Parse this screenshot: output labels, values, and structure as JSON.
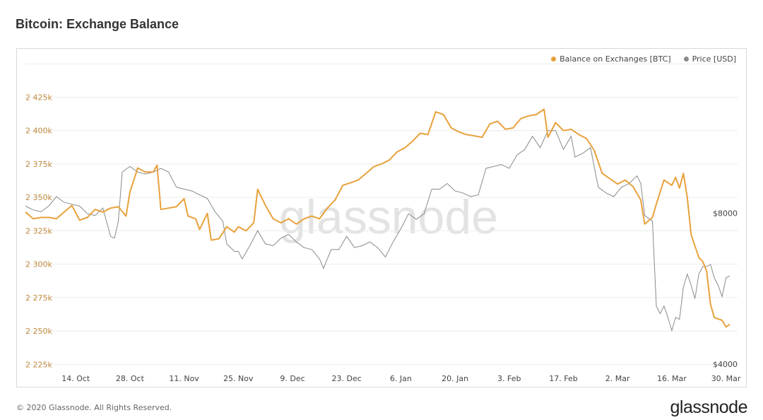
{
  "title": "Bitcoin: Exchange Balance",
  "footer": "© 2020 Glassnode. All Rights Reserved.",
  "logo": "glassnode",
  "watermark": "glassnode",
  "colors": {
    "balance": "#e8a13c",
    "price": "#8a8a8a",
    "grid": "#ececec",
    "left_axis_text": "#c08a3e",
    "text": "#444444"
  },
  "chart_data": {
    "type": "line",
    "title": "Bitcoin: Exchange Balance",
    "legend": {
      "placement": "top-right",
      "entries": [
        "Balance on Exchanges [BTC]",
        "Price [USD]"
      ]
    },
    "grid": true,
    "x_labels": [
      "14. Oct",
      "28. Oct",
      "11. Nov",
      "25. Nov",
      "9. Dec",
      "23. Dec",
      "6. Jan",
      "20. Jan",
      "3. Feb",
      "17. Feb",
      "2. Mar",
      "16. Mar",
      "30. Mar"
    ],
    "x_range": [
      "2019-10-01",
      "2020-04-02"
    ],
    "y_left": {
      "ticks": [
        2225000,
        2250000,
        2275000,
        2300000,
        2325000,
        2350000,
        2375000,
        2400000,
        2425000
      ],
      "tick_labels": [
        "2 225k",
        "2 250k",
        "2 275k",
        "2 300k",
        "2 325k",
        "2 350k",
        "2 375k",
        "2 400k",
        "2 425k"
      ],
      "range": [
        2222000,
        2448000
      ]
    },
    "y_right": {
      "tick_labels": [
        "$4000",
        "$8000"
      ],
      "ticks": [
        4000,
        8000
      ],
      "range": [
        4000,
        12000
      ]
    },
    "series": [
      {
        "name": "Balance on Exchanges [BTC]",
        "axis": "left",
        "points": [
          [
            "2019-10-01",
            2339000
          ],
          [
            "2019-10-03",
            2334000
          ],
          [
            "2019-10-05",
            2335000
          ],
          [
            "2019-10-07",
            2335000
          ],
          [
            "2019-10-09",
            2334000
          ],
          [
            "2019-10-11",
            2339000
          ],
          [
            "2019-10-13",
            2344000
          ],
          [
            "2019-10-15",
            2333000
          ],
          [
            "2019-10-17",
            2335000
          ],
          [
            "2019-10-19",
            2341000
          ],
          [
            "2019-10-21",
            2339000
          ],
          [
            "2019-10-23",
            2342000
          ],
          [
            "2019-10-25",
            2343000
          ],
          [
            "2019-10-27",
            2336000
          ],
          [
            "2019-10-28",
            2354000
          ],
          [
            "2019-10-30",
            2372000
          ],
          [
            "2019-11-01",
            2369000
          ],
          [
            "2019-11-03",
            2369000
          ],
          [
            "2019-11-04",
            2374000
          ],
          [
            "2019-11-05",
            2341000
          ],
          [
            "2019-11-07",
            2342000
          ],
          [
            "2019-11-09",
            2343000
          ],
          [
            "2019-11-11",
            2349000
          ],
          [
            "2019-11-12",
            2336000
          ],
          [
            "2019-11-14",
            2334000
          ],
          [
            "2019-11-15",
            2326000
          ],
          [
            "2019-11-17",
            2338000
          ],
          [
            "2019-11-18",
            2318000
          ],
          [
            "2019-11-20",
            2319000
          ],
          [
            "2019-11-22",
            2328000
          ],
          [
            "2019-11-24",
            2324000
          ],
          [
            "2019-11-25",
            2328000
          ],
          [
            "2019-11-27",
            2325000
          ],
          [
            "2019-11-29",
            2331000
          ],
          [
            "2019-11-30",
            2356000
          ],
          [
            "2019-12-02",
            2344000
          ],
          [
            "2019-12-04",
            2334000
          ],
          [
            "2019-12-06",
            2331000
          ],
          [
            "2019-12-08",
            2334000
          ],
          [
            "2019-12-10",
            2330000
          ],
          [
            "2019-12-12",
            2334000
          ],
          [
            "2019-12-14",
            2336000
          ],
          [
            "2019-12-16",
            2334000
          ],
          [
            "2019-12-18",
            2342000
          ],
          [
            "2019-12-20",
            2348000
          ],
          [
            "2019-12-22",
            2359000
          ],
          [
            "2019-12-24",
            2361000
          ],
          [
            "2019-12-26",
            2363000
          ],
          [
            "2019-12-28",
            2368000
          ],
          [
            "2019-12-30",
            2373000
          ],
          [
            "2020-01-01",
            2375000
          ],
          [
            "2020-01-03",
            2378000
          ],
          [
            "2020-01-05",
            2384000
          ],
          [
            "2020-01-07",
            2387000
          ],
          [
            "2020-01-09",
            2392000
          ],
          [
            "2020-01-11",
            2398000
          ],
          [
            "2020-01-13",
            2397000
          ],
          [
            "2020-01-15",
            2414000
          ],
          [
            "2020-01-17",
            2412000
          ],
          [
            "2020-01-19",
            2402000
          ],
          [
            "2020-01-21",
            2399000
          ],
          [
            "2020-01-23",
            2397000
          ],
          [
            "2020-01-25",
            2396000
          ],
          [
            "2020-01-27",
            2395000
          ],
          [
            "2020-01-29",
            2405000
          ],
          [
            "2020-01-31",
            2407000
          ],
          [
            "2020-02-02",
            2401000
          ],
          [
            "2020-02-04",
            2402000
          ],
          [
            "2020-02-06",
            2409000
          ],
          [
            "2020-02-08",
            2411000
          ],
          [
            "2020-02-10",
            2412000
          ],
          [
            "2020-02-12",
            2416000
          ],
          [
            "2020-02-13",
            2395000
          ],
          [
            "2020-02-15",
            2406000
          ],
          [
            "2020-02-17",
            2400000
          ],
          [
            "2020-02-19",
            2401000
          ],
          [
            "2020-02-21",
            2397000
          ],
          [
            "2020-02-23",
            2394000
          ],
          [
            "2020-02-25",
            2385000
          ],
          [
            "2020-02-27",
            2368000
          ],
          [
            "2020-02-29",
            2364000
          ],
          [
            "2020-03-02",
            2360000
          ],
          [
            "2020-03-04",
            2363000
          ],
          [
            "2020-03-06",
            2358000
          ],
          [
            "2020-03-08",
            2348000
          ],
          [
            "2020-03-09",
            2330000
          ],
          [
            "2020-03-11",
            2335000
          ],
          [
            "2020-03-12",
            2345000
          ],
          [
            "2020-03-14",
            2363000
          ],
          [
            "2020-03-16",
            2359000
          ],
          [
            "2020-03-17",
            2365000
          ],
          [
            "2020-03-18",
            2357000
          ],
          [
            "2020-03-19",
            2368000
          ],
          [
            "2020-03-20",
            2350000
          ],
          [
            "2020-03-21",
            2322000
          ],
          [
            "2020-03-23",
            2305000
          ],
          [
            "2020-03-24",
            2302000
          ],
          [
            "2020-03-25",
            2295000
          ],
          [
            "2020-03-26",
            2270000
          ],
          [
            "2020-03-27",
            2260000
          ],
          [
            "2020-03-29",
            2258000
          ],
          [
            "2020-03-30",
            2253000
          ],
          [
            "2020-03-31",
            2255000
          ]
        ]
      },
      {
        "name": "Price [USD]",
        "axis": "right",
        "points": [
          [
            "2019-10-01",
            8300
          ],
          [
            "2019-10-03",
            8200
          ],
          [
            "2019-10-05",
            8150
          ],
          [
            "2019-10-07",
            8300
          ],
          [
            "2019-10-09",
            8550
          ],
          [
            "2019-10-11",
            8400
          ],
          [
            "2019-10-13",
            8350
          ],
          [
            "2019-10-15",
            8300
          ],
          [
            "2019-10-17",
            8100
          ],
          [
            "2019-10-19",
            8050
          ],
          [
            "2019-10-21",
            8250
          ],
          [
            "2019-10-23",
            7500
          ],
          [
            "2019-10-24",
            7450
          ],
          [
            "2019-10-25",
            7900
          ],
          [
            "2019-10-26",
            9200
          ],
          [
            "2019-10-28",
            9350
          ],
          [
            "2019-10-30",
            9200
          ],
          [
            "2019-11-01",
            9150
          ],
          [
            "2019-11-03",
            9200
          ],
          [
            "2019-11-05",
            9300
          ],
          [
            "2019-11-07",
            9200
          ],
          [
            "2019-11-09",
            8800
          ],
          [
            "2019-11-11",
            8750
          ],
          [
            "2019-11-13",
            8700
          ],
          [
            "2019-11-15",
            8600
          ],
          [
            "2019-11-17",
            8500
          ],
          [
            "2019-11-19",
            8150
          ],
          [
            "2019-11-21",
            7900
          ],
          [
            "2019-11-22",
            7300
          ],
          [
            "2019-11-24",
            7100
          ],
          [
            "2019-11-25",
            7100
          ],
          [
            "2019-11-26",
            6900
          ],
          [
            "2019-11-28",
            7250
          ],
          [
            "2019-11-30",
            7650
          ],
          [
            "2019-12-02",
            7300
          ],
          [
            "2019-12-04",
            7250
          ],
          [
            "2019-12-06",
            7450
          ],
          [
            "2019-12-08",
            7550
          ],
          [
            "2019-12-10",
            7350
          ],
          [
            "2019-12-12",
            7200
          ],
          [
            "2019-12-14",
            7150
          ],
          [
            "2019-12-16",
            6900
          ],
          [
            "2019-12-17",
            6650
          ],
          [
            "2019-12-19",
            7150
          ],
          [
            "2019-12-21",
            7150
          ],
          [
            "2019-12-23",
            7500
          ],
          [
            "2019-12-25",
            7200
          ],
          [
            "2019-12-27",
            7250
          ],
          [
            "2019-12-29",
            7350
          ],
          [
            "2019-12-31",
            7200
          ],
          [
            "2020-01-02",
            6950
          ],
          [
            "2020-01-04",
            7350
          ],
          [
            "2020-01-06",
            7700
          ],
          [
            "2020-01-08",
            8100
          ],
          [
            "2020-01-10",
            7950
          ],
          [
            "2020-01-12",
            8100
          ],
          [
            "2020-01-14",
            8750
          ],
          [
            "2020-01-16",
            8750
          ],
          [
            "2020-01-18",
            8900
          ],
          [
            "2020-01-20",
            8700
          ],
          [
            "2020-01-22",
            8650
          ],
          [
            "2020-01-24",
            8550
          ],
          [
            "2020-01-26",
            8600
          ],
          [
            "2020-01-28",
            9300
          ],
          [
            "2020-01-30",
            9350
          ],
          [
            "2020-02-01",
            9400
          ],
          [
            "2020-02-03",
            9300
          ],
          [
            "2020-02-05",
            9650
          ],
          [
            "2020-02-07",
            9800
          ],
          [
            "2020-02-09",
            10150
          ],
          [
            "2020-02-11",
            9850
          ],
          [
            "2020-02-13",
            10300
          ],
          [
            "2020-02-15",
            10300
          ],
          [
            "2020-02-17",
            9800
          ],
          [
            "2020-02-19",
            10150
          ],
          [
            "2020-02-20",
            9600
          ],
          [
            "2020-02-22",
            9700
          ],
          [
            "2020-02-24",
            9850
          ],
          [
            "2020-02-26",
            8800
          ],
          [
            "2020-02-28",
            8650
          ],
          [
            "2020-03-01",
            8550
          ],
          [
            "2020-03-03",
            8800
          ],
          [
            "2020-03-05",
            8900
          ],
          [
            "2020-03-07",
            9100
          ],
          [
            "2020-03-08",
            8900
          ],
          [
            "2020-03-09",
            8050
          ],
          [
            "2020-03-11",
            7900
          ],
          [
            "2020-03-12",
            5650
          ],
          [
            "2020-03-13",
            5450
          ],
          [
            "2020-03-14",
            5650
          ],
          [
            "2020-03-15",
            5350
          ],
          [
            "2020-03-16",
            5000
          ],
          [
            "2020-03-17",
            5350
          ],
          [
            "2020-03-18",
            5300
          ],
          [
            "2020-03-19",
            6150
          ],
          [
            "2020-03-20",
            6500
          ],
          [
            "2020-03-21",
            6200
          ],
          [
            "2020-03-22",
            5850
          ],
          [
            "2020-03-23",
            6500
          ],
          [
            "2020-03-24",
            6700
          ],
          [
            "2020-03-25",
            6700
          ],
          [
            "2020-03-26",
            6750
          ],
          [
            "2020-03-27",
            6400
          ],
          [
            "2020-03-28",
            6200
          ],
          [
            "2020-03-29",
            5900
          ],
          [
            "2020-03-30",
            6400
          ],
          [
            "2020-03-31",
            6450
          ]
        ]
      }
    ]
  }
}
